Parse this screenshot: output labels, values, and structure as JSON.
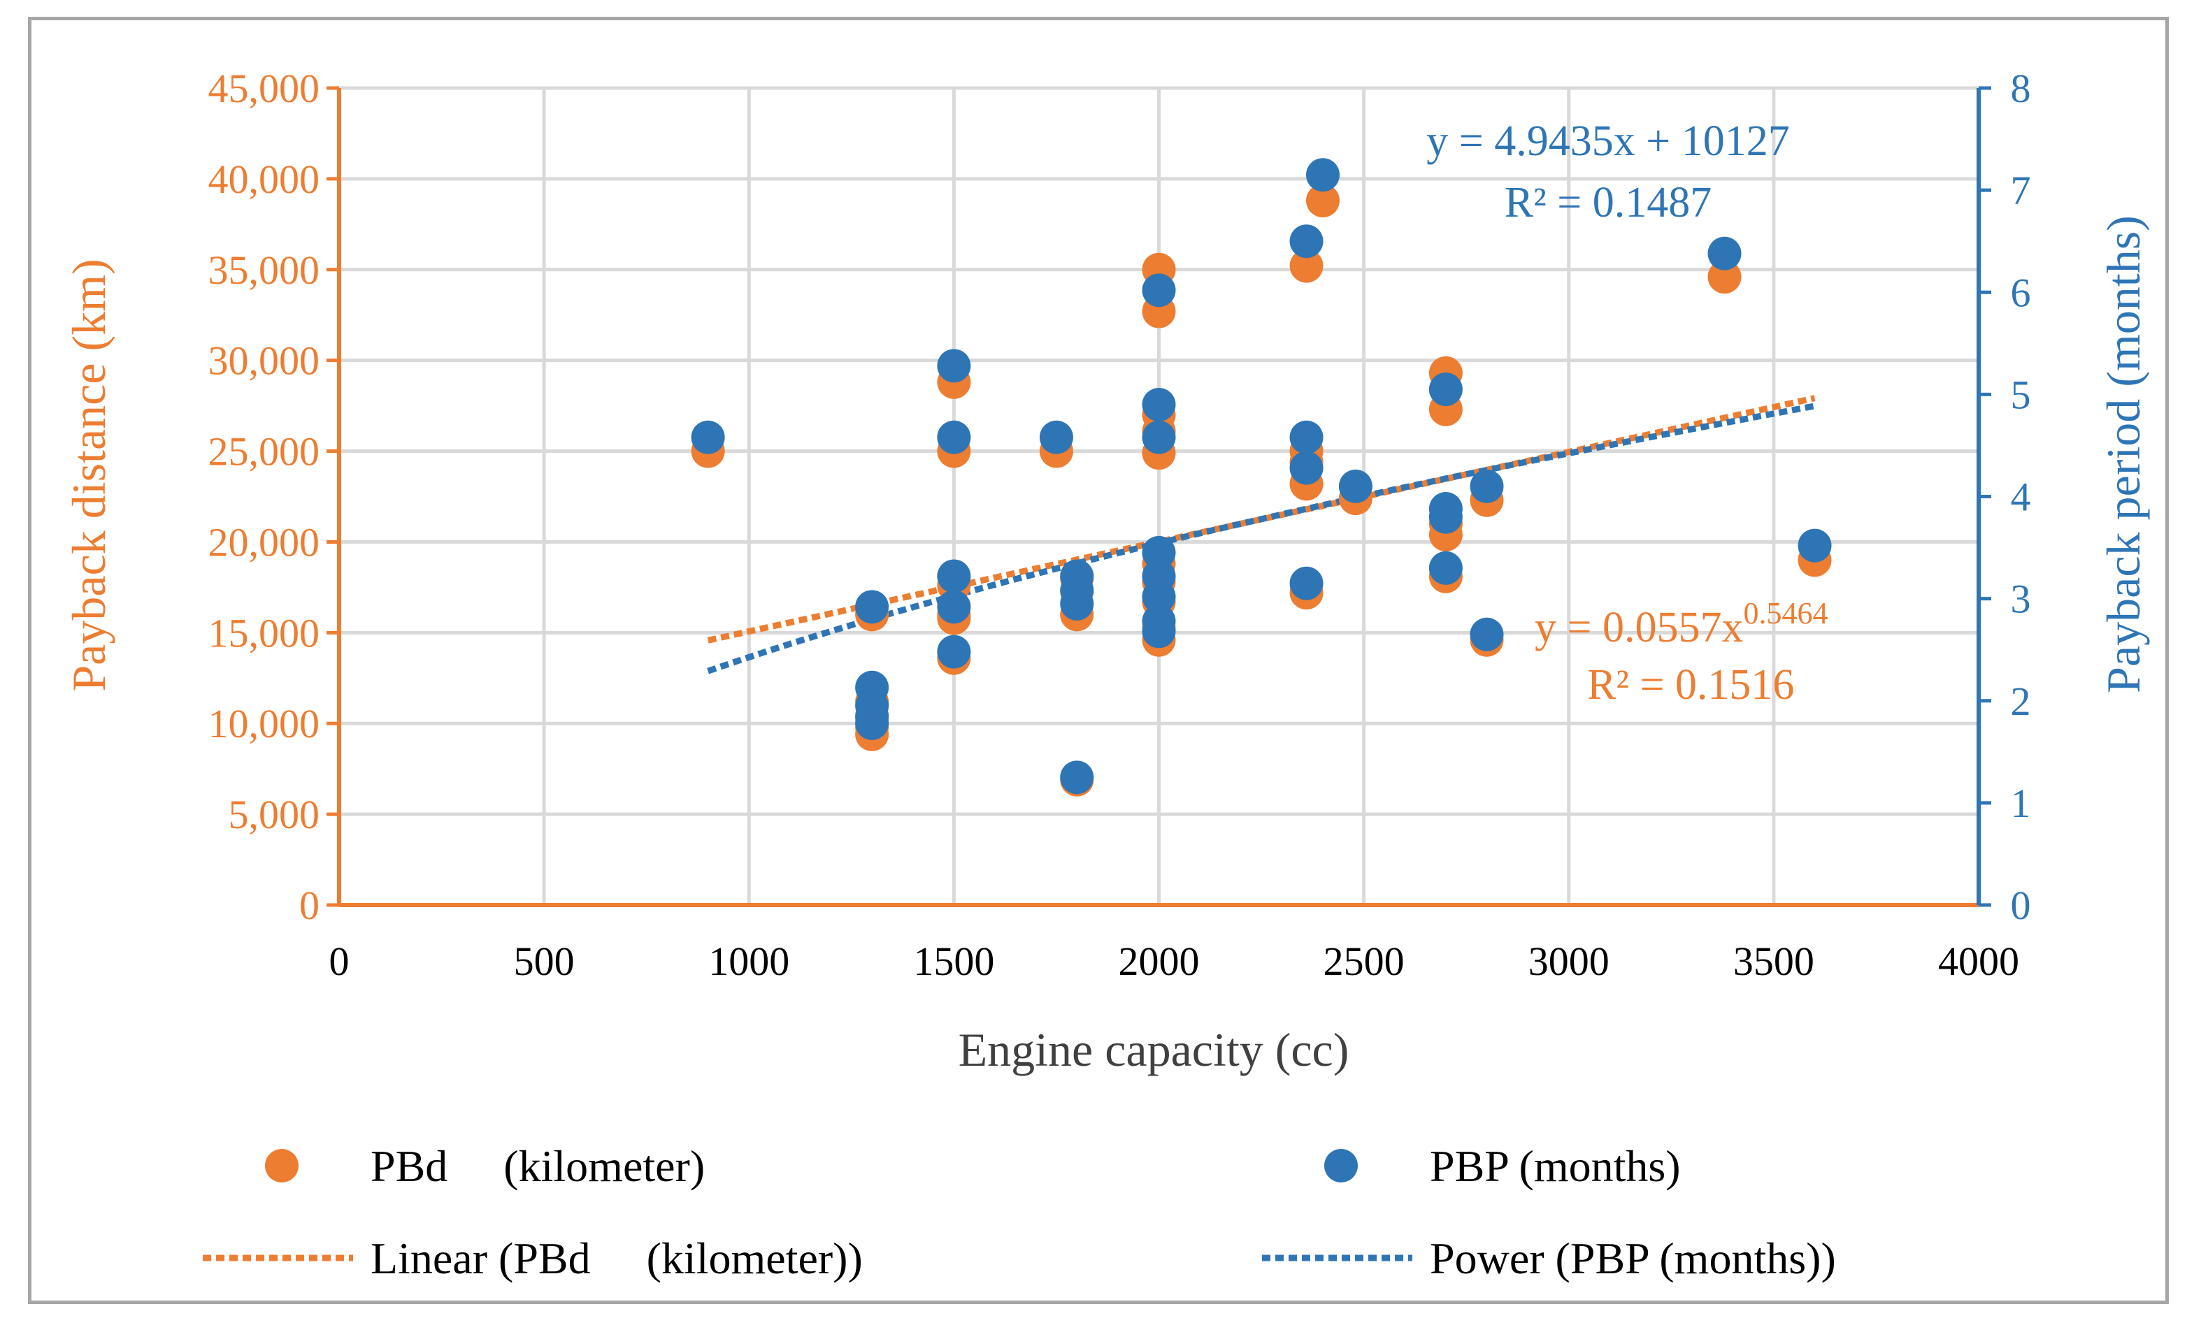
{
  "chart_data": {
    "type": "scatter",
    "colors": {
      "pbd": "#ed7d31",
      "pbp": "#2e75b6",
      "grid": "#d9d9d9",
      "axis_text": "#595959"
    },
    "xlabel": "Engine capacity (cc)",
    "ylabel_left": "Payback distance (km)",
    "ylabel_right": "Payback period (months)",
    "xlim": [
      0,
      4000
    ],
    "ylim_left": [
      0,
      45000
    ],
    "ylim_right": [
      0,
      8
    ],
    "x_ticks": [
      "0",
      "500",
      "1000",
      "1500",
      "2000",
      "2500",
      "3000",
      "3500",
      "4000"
    ],
    "y_left_ticks": [
      "0",
      "5,000",
      "10,000",
      "15,000",
      "20,000",
      "25,000",
      "30,000",
      "35,000",
      "40,000",
      "45,000"
    ],
    "y_right_ticks": [
      "0",
      "1",
      "2",
      "3",
      "4",
      "5",
      "6",
      "7",
      "8"
    ],
    "series": [
      {
        "name": "PBd     (kilometer)",
        "axis": "left",
        "x": [
          900,
          1300,
          1300,
          1300,
          1300,
          1300,
          1500,
          1500,
          1500,
          1500,
          1500,
          1500,
          1750,
          1800,
          1800,
          1800,
          1800,
          2000,
          2000,
          2000,
          2000,
          2000,
          2000,
          2000,
          2000,
          2000,
          2000,
          2360,
          2360,
          2360,
          2360,
          2360,
          2400,
          2480,
          2700,
          2700,
          2700,
          2700,
          2700,
          2800,
          2800,
          3380,
          3600
        ],
        "y": [
          25000,
          16000,
          11200,
          10300,
          9800,
          9400,
          28800,
          25000,
          17600,
          16000,
          15800,
          13600,
          25000,
          6900,
          16000,
          17300,
          18000,
          14600,
          15300,
          16700,
          17800,
          18800,
          24900,
          26100,
          27000,
          32700,
          35000,
          17200,
          23200,
          24400,
          25000,
          35200,
          38800,
          22400,
          18100,
          20400,
          21000,
          27300,
          29300,
          14600,
          22300,
          34600,
          19000
        ]
      },
      {
        "name": "PBP (months)",
        "axis": "right",
        "x": [
          900,
          1300,
          1300,
          1300,
          1300,
          1300,
          1500,
          1500,
          1500,
          1500,
          1500,
          1750,
          1800,
          1800,
          1800,
          1800,
          2000,
          2000,
          2000,
          2000,
          2000,
          2000,
          2000,
          2000,
          2360,
          2360,
          2360,
          2360,
          2400,
          2480,
          2700,
          2700,
          2700,
          2700,
          2800,
          2800,
          3380,
          3600
        ],
        "y": [
          4.58,
          2.92,
          2.13,
          1.95,
          1.85,
          1.78,
          5.28,
          4.58,
          3.22,
          2.92,
          2.48,
          4.58,
          1.25,
          2.95,
          3.08,
          3.22,
          2.68,
          2.78,
          3.02,
          3.22,
          3.45,
          4.58,
          4.9,
          6.02,
          3.15,
          4.28,
          4.58,
          6.5,
          7.15,
          4.1,
          3.3,
          3.8,
          3.88,
          5.05,
          2.65,
          4.1,
          6.38,
          3.52
        ]
      }
    ],
    "trendlines": [
      {
        "name": "Linear (PBd     (kilometer))",
        "kind": "linear",
        "series": 0,
        "slope": 4.9435,
        "intercept": 10127,
        "x_range": [
          900,
          3600
        ],
        "equation": "y = 4.9435x + 10127",
        "r2": "R² = 0.1487"
      },
      {
        "name": "Power (PBP (months))",
        "kind": "power",
        "series": 1,
        "coef": 0.0557,
        "exponent": 0.5464,
        "x_range": [
          900,
          3600
        ],
        "equation_base": "y = 0.0557x",
        "equation_exp": "0.5464",
        "r2": "R² = 0.1516"
      }
    ]
  }
}
